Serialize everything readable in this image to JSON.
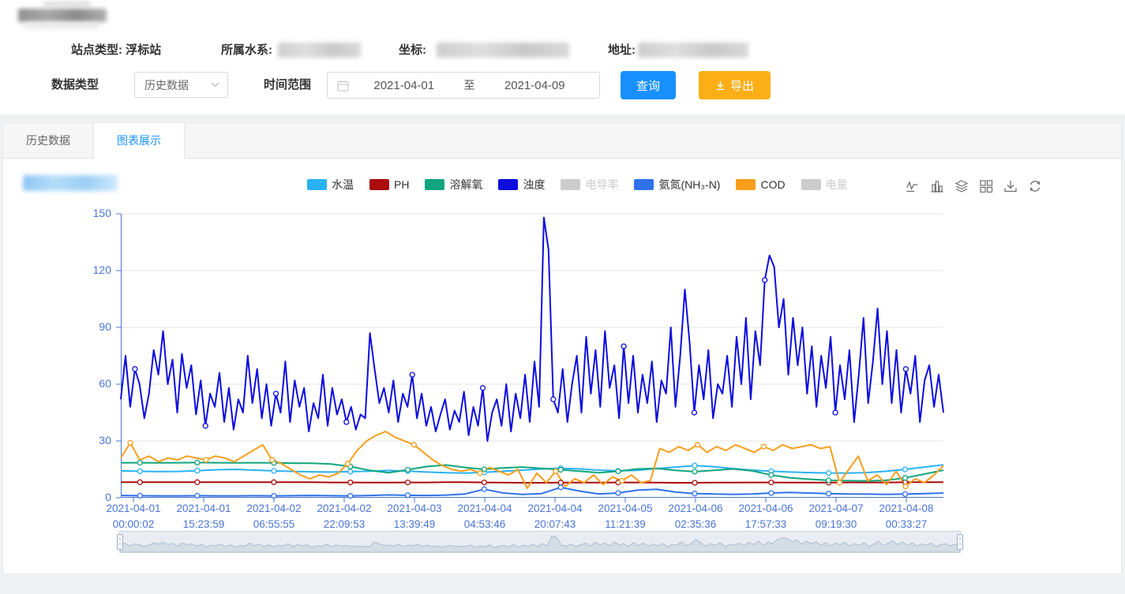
{
  "header": {
    "station": {
      "type_label": "站点类型:",
      "type_value": "浮标站",
      "water_system_label": "所属水系:",
      "coordinate_label": "坐标:",
      "address_label": "地址:"
    },
    "filters": {
      "data_type_label": "数据类型",
      "data_type_value": "历史数据",
      "time_range_label": "时间范围",
      "date_start": "2021-04-01",
      "range_separator": "至",
      "date_end": "2021-04-09",
      "query_button": "查询",
      "export_button": "导出"
    }
  },
  "tabs": [
    {
      "label": "历史数据",
      "active": false
    },
    {
      "label": "图表展示",
      "active": true
    }
  ],
  "colors": {
    "primary": "#1890ff",
    "export_button": "#fbae15",
    "axis_label": "#4a74d4",
    "grid_line": "#e6e6e6",
    "disabled": "#cccccc"
  },
  "chart_data": {
    "type": "line",
    "title": "",
    "xlabel": "",
    "ylabel": "",
    "ylim": [
      0,
      150
    ],
    "yticks": [
      0,
      30,
      60,
      90,
      120,
      150
    ],
    "grid": true,
    "legend_position": "top",
    "axis_color": "#4a74d4",
    "toolbox_icons": [
      "line-chart",
      "bar-chart",
      "stack",
      "tiled",
      "save-image",
      "restore"
    ],
    "x_labels": [
      {
        "date": "2021-04-01",
        "time": "00:00:02"
      },
      {
        "date": "2021-04-01",
        "time": "15:23:59"
      },
      {
        "date": "2021-04-02",
        "time": "06:55:55"
      },
      {
        "date": "2021-04-02",
        "time": "22:09:53"
      },
      {
        "date": "2021-04-03",
        "time": "13:39:49"
      },
      {
        "date": "2021-04-04",
        "time": "04:53:46"
      },
      {
        "date": "2021-04-04",
        "time": "20:07:43"
      },
      {
        "date": "2021-04-05",
        "time": "11:21:39"
      },
      {
        "date": "2021-04-06",
        "time": "02:35:36"
      },
      {
        "date": "2021-04-06",
        "time": "17:57:33"
      },
      {
        "date": "2021-04-07",
        "time": "09:19:30"
      },
      {
        "date": "2021-04-08",
        "time": "00:33:27"
      }
    ],
    "legend": [
      {
        "name": "水温",
        "color": "#29b2f2",
        "enabled": true
      },
      {
        "name": "PH",
        "color": "#aa0b0b",
        "enabled": true
      },
      {
        "name": "溶解氧",
        "color": "#10a57e",
        "enabled": true
      },
      {
        "name": "浊度",
        "color": "#0d0ddd",
        "enabled": true
      },
      {
        "name": "电导率",
        "color": "#cccccc",
        "enabled": false
      },
      {
        "name": "氨氮(NH₃-N)",
        "color": "#2f72e9",
        "enabled": true
      },
      {
        "name": "COD",
        "color": "#f99e1b",
        "enabled": true
      },
      {
        "name": "电量",
        "color": "#cccccc",
        "enabled": false
      }
    ],
    "series": [
      {
        "name": "水温",
        "color": "#29b2f2",
        "width": 2,
        "values": [
          14.2,
          14.0,
          13.8,
          13.9,
          14.3,
          14.8,
          15.0,
          14.6,
          14.2,
          13.9,
          13.7,
          13.6,
          13.8,
          14.0,
          14.4,
          14.1,
          13.6,
          13.2,
          13.0,
          13.4,
          14.0,
          14.6,
          15.2,
          15.6,
          15.2,
          14.6,
          14.2,
          14.5,
          15.4,
          16.2,
          17.0,
          16.4,
          15.4,
          14.6,
          14.0,
          13.6,
          13.3,
          13.1,
          13.0,
          13.3,
          14.0,
          15.0,
          16.2,
          17.4
        ]
      },
      {
        "name": "PH",
        "color": "#aa0b0b",
        "width": 2,
        "values": [
          8.2,
          8.2,
          8.2,
          8.2,
          8.2,
          8.2,
          8.2,
          8.2,
          8.2,
          8.2,
          8.2,
          8.1,
          8.1,
          8.0,
          8.0,
          8.1,
          8.1,
          8.2,
          8.2,
          8.1,
          8.0,
          7.9,
          7.9,
          8.0,
          8.0,
          8.0,
          8.1,
          8.1,
          8.0,
          7.9,
          7.9,
          8.0,
          8.0,
          8.1,
          8.1,
          8.0,
          8.0,
          8.0,
          8.1,
          8.1,
          8.1,
          8.2,
          8.2,
          8.2
        ]
      },
      {
        "name": "溶解氧",
        "color": "#10a57e",
        "width": 2,
        "values": [
          18.5,
          18.5,
          18.4,
          18.5,
          18.6,
          18.5,
          18.4,
          18.5,
          18.4,
          18.3,
          18.2,
          17.8,
          16.5,
          14.5,
          13.2,
          14.8,
          16.5,
          17.3,
          16.0,
          15.0,
          15.8,
          16.2,
          15.5,
          14.8,
          14.0,
          13.2,
          14.0,
          15.2,
          15.5,
          14.5,
          13.8,
          14.5,
          15.2,
          14.2,
          12.0,
          10.5,
          9.8,
          9.2,
          9.0,
          8.9,
          9.2,
          10.5,
          12.5,
          14.6
        ]
      },
      {
        "name": "浊度",
        "color": "#0d0ddd",
        "width": 2,
        "values": [
          52,
          75,
          48,
          68,
          60,
          42,
          55,
          78,
          65,
          88,
          60,
          73,
          45,
          76,
          58,
          70,
          44,
          62,
          38,
          55,
          48,
          66,
          40,
          58,
          36,
          52,
          45,
          75,
          50,
          68,
          42,
          60,
          38,
          55,
          45,
          72,
          40,
          62,
          48,
          58,
          35,
          50,
          42,
          65,
          38,
          58,
          44,
          52,
          40,
          48,
          36,
          44,
          42,
          87,
          68,
          50,
          58,
          45,
          62,
          40,
          55,
          48,
          65,
          42,
          55,
          38,
          48,
          35,
          44,
          52,
          36,
          46,
          40,
          56,
          33,
          48,
          38,
          58,
          30,
          45,
          52,
          38,
          60,
          35,
          55,
          42,
          65,
          40,
          72,
          48,
          148,
          131,
          52,
          45,
          68,
          40,
          60,
          75,
          45,
          85,
          55,
          78,
          48,
          88,
          58,
          70,
          42,
          80,
          50,
          75,
          45,
          65,
          50,
          72,
          40,
          62,
          55,
          90,
          48,
          75,
          110,
          82,
          45,
          70,
          52,
          78,
          42,
          60,
          55,
          75,
          48,
          85,
          60,
          95,
          52,
          88,
          70,
          115,
          128,
          122,
          90,
          105,
          65,
          95,
          70,
          90,
          55,
          80,
          48,
          75,
          58,
          85,
          45,
          70,
          52,
          78,
          40,
          65,
          95,
          50,
          72,
          100,
          60,
          88,
          50,
          78,
          45,
          68,
          55,
          75,
          40,
          62,
          70,
          48,
          65,
          45
        ]
      },
      {
        "name": "氨氮(NH₃-N)",
        "color": "#2f72e9",
        "width": 2,
        "values": [
          1.2,
          1.1,
          1.0,
          1.0,
          1.1,
          1.0,
          1.0,
          1.1,
          1.0,
          1.1,
          1.2,
          1.1,
          1.0,
          1.2,
          1.5,
          1.3,
          1.2,
          1.4,
          2.0,
          4.5,
          2.5,
          1.8,
          2.2,
          5.5,
          3.5,
          2.0,
          2.5,
          4.0,
          4.5,
          3.0,
          2.2,
          2.0,
          1.8,
          2.0,
          2.5,
          2.8,
          2.5,
          2.2,
          2.0,
          1.9,
          1.8,
          1.9,
          2.2,
          2.5
        ]
      },
      {
        "name": "COD",
        "color": "#f99e1b",
        "width": 2,
        "values": [
          21,
          29,
          20,
          22,
          19,
          21,
          20,
          22,
          21,
          20,
          22,
          21,
          19,
          22,
          25,
          28,
          20,
          18,
          15,
          12,
          10,
          12,
          11,
          13,
          18,
          25,
          30,
          33,
          35,
          32,
          30,
          28,
          24,
          20,
          17,
          15,
          14,
          15,
          13,
          16,
          14,
          12,
          15,
          5,
          13,
          8,
          14,
          6,
          10,
          8,
          12,
          7,
          11,
          9,
          12,
          8,
          9,
          26,
          24,
          27,
          25,
          28,
          24,
          27,
          25,
          28,
          26,
          24,
          27,
          25,
          28,
          26,
          27,
          28,
          26,
          27,
          8,
          15,
          22,
          9,
          12,
          7,
          14,
          6,
          10,
          8,
          12,
          17
        ]
      }
    ]
  }
}
